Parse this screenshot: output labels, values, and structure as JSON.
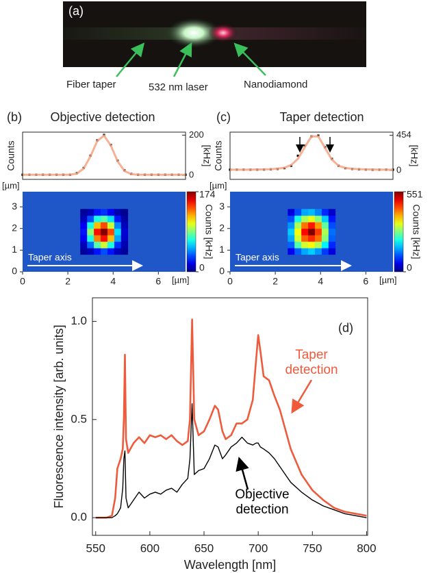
{
  "photo": {
    "label": "(a)",
    "annotations": [
      "Fiber taper",
      "532 nm laser",
      "Nanodiamond"
    ]
  },
  "chart_data": [
    {
      "type": "line",
      "panel_label": "(b)",
      "title": "Objective detection",
      "ylabel": "Counts",
      "unit_label": "[kHz]",
      "xlim": [
        0,
        7.2
      ],
      "ylim": [
        -20,
        215
      ],
      "yticks": [
        0,
        200
      ],
      "x": [
        0,
        0.3,
        0.6,
        0.9,
        1.2,
        1.5,
        1.8,
        2.1,
        2.4,
        2.7,
        3.0,
        3.3,
        3.6,
        3.9,
        4.2,
        4.5,
        4.8,
        5.1,
        5.4,
        5.7,
        6.0,
        6.3,
        6.6,
        6.9,
        7.2
      ],
      "series": [
        {
          "style": "markers",
          "color": "#000000",
          "values": [
            3,
            3,
            3,
            3,
            3,
            3,
            3,
            3,
            11,
            37,
            98,
            174,
            201,
            151,
            73,
            25,
            7,
            3,
            3,
            3,
            3,
            3,
            3,
            3,
            3
          ]
        },
        {
          "style": "line",
          "color": "#f7a282",
          "values": [
            3,
            3,
            3,
            3,
            3,
            3,
            3,
            3,
            9,
            34,
            95,
            171,
            198,
            148,
            70,
            22,
            6,
            3,
            3,
            3,
            3,
            3,
            3,
            3,
            3
          ]
        }
      ]
    },
    {
      "type": "heatmap",
      "xlabel": "[µm]",
      "ylabel": "[µm]",
      "xlim": [
        0,
        7.2
      ],
      "ylim": [
        0,
        3.7
      ],
      "xticks": [
        0,
        2,
        4,
        6
      ],
      "yticks": [
        0,
        1,
        2,
        3
      ],
      "colormap": "jet",
      "background_color": "#1f56c8",
      "zlim": [
        0,
        174
      ],
      "zticks": [
        0,
        174
      ],
      "colorbar_label": "Counts [kHz]",
      "annotation": "Taper axis",
      "x": [
        2.7,
        3.0,
        3.3,
        3.6,
        3.9,
        4.2,
        4.5
      ],
      "y": [
        0.95,
        1.25,
        1.55,
        1.85,
        2.15,
        2.45,
        2.75
      ],
      "z": [
        [
          5,
          10,
          25,
          35,
          25,
          10,
          5
        ],
        [
          10,
          40,
          80,
          100,
          70,
          30,
          8
        ],
        [
          20,
          70,
          130,
          150,
          120,
          50,
          12
        ],
        [
          25,
          90,
          150,
          174,
          140,
          60,
          15
        ],
        [
          20,
          70,
          120,
          140,
          100,
          45,
          10
        ],
        [
          10,
          35,
          70,
          80,
          60,
          25,
          6
        ],
        [
          4,
          10,
          25,
          30,
          20,
          8,
          3
        ]
      ]
    },
    {
      "type": "line",
      "panel_label": "(c)",
      "title": "Taper detection",
      "ylabel": "Counts",
      "unit_label": "[kHz]",
      "xlim": [
        0,
        7.2
      ],
      "ylim": [
        -115,
        495
      ],
      "yticks": [
        0,
        454
      ],
      "x": [
        0,
        0.3,
        0.6,
        0.9,
        1.2,
        1.5,
        1.8,
        2.1,
        2.4,
        2.7,
        3.0,
        3.3,
        3.6,
        3.9,
        4.2,
        4.5,
        4.8,
        5.1,
        5.4,
        5.7,
        6.0,
        6.3,
        6.6,
        6.9,
        7.2
      ],
      "series": [
        {
          "style": "markers",
          "color": "#000000",
          "values": [
            10,
            10,
            10,
            10,
            11,
            12,
            15,
            20,
            30,
            60,
            190,
            320,
            440,
            450,
            300,
            150,
            60,
            30,
            20,
            15,
            12,
            10,
            10,
            10,
            10
          ]
        },
        {
          "style": "line",
          "color": "#f7a282",
          "values": [
            10,
            10,
            10,
            11,
            12,
            14,
            17,
            23,
            35,
            70,
            150,
            300,
            440,
            440,
            290,
            140,
            60,
            32,
            22,
            17,
            14,
            12,
            11,
            10,
            10
          ]
        }
      ]
    },
    {
      "type": "heatmap",
      "xlabel": "[µm]",
      "ylabel": "[µm]",
      "xlim": [
        0,
        7.2
      ],
      "ylim": [
        0,
        3.7
      ],
      "xticks": [
        0,
        2,
        4,
        6
      ],
      "yticks": [
        0,
        1,
        2,
        3
      ],
      "colormap": "jet",
      "background_color": "#1f56c8",
      "zlim": [
        0,
        551
      ],
      "zticks": [
        0,
        551
      ],
      "colorbar_label": "Counts [kHz]",
      "annotation": "Taper axis",
      "x": [
        2.7,
        3.0,
        3.3,
        3.6,
        3.9,
        4.2,
        4.5
      ],
      "y": [
        0.95,
        1.25,
        1.55,
        1.85,
        2.15,
        2.45,
        2.75
      ],
      "z": [
        [
          60,
          120,
          160,
          180,
          150,
          100,
          50
        ],
        [
          120,
          250,
          320,
          340,
          300,
          200,
          90
        ],
        [
          160,
          320,
          430,
          460,
          420,
          280,
          120
        ],
        [
          180,
          340,
          480,
          551,
          450,
          300,
          130
        ],
        [
          150,
          300,
          420,
          470,
          400,
          260,
          110
        ],
        [
          110,
          220,
          300,
          330,
          280,
          180,
          80
        ],
        [
          50,
          110,
          160,
          170,
          140,
          90,
          40
        ]
      ]
    },
    {
      "type": "line",
      "panel_label": "(d)",
      "xlabel": "Wavelength [nm]",
      "ylabel": "Fluorescence intensity [arb. units]",
      "xlim": [
        547,
        801
      ],
      "ylim": [
        -0.09,
        1.12
      ],
      "xticks": [
        550,
        600,
        650,
        700,
        750,
        800
      ],
      "yticks": [
        {
          "value": 0,
          "label": "0.0"
        },
        {
          "value": 0.5,
          "label": "0.5"
        },
        {
          "value": 1,
          "label": "1.0"
        }
      ],
      "x": [
        550,
        560,
        565,
        568,
        570,
        573,
        575,
        576,
        577,
        578,
        580,
        585,
        590,
        595,
        600,
        605,
        610,
        615,
        620,
        625,
        630,
        635,
        637,
        639,
        641,
        645,
        650,
        655,
        660,
        663,
        667,
        670,
        675,
        680,
        685,
        690,
        695,
        698,
        700,
        702,
        705,
        710,
        715,
        720,
        725,
        730,
        740,
        750,
        760,
        770,
        780,
        790,
        800
      ],
      "series": [
        {
          "name": "Taper detection",
          "style": "line",
          "color": "#f05a3c",
          "values": [
            0,
            0,
            0.01,
            0.1,
            0.25,
            0.3,
            0.35,
            0.5,
            0.83,
            0.4,
            0.33,
            0.38,
            0.41,
            0.38,
            0.42,
            0.41,
            0.42,
            0.4,
            0.42,
            0.39,
            0.37,
            0.39,
            0.5,
            1.01,
            0.5,
            0.42,
            0.44,
            0.5,
            0.57,
            0.55,
            0.44,
            0.4,
            0.42,
            0.48,
            0.48,
            0.5,
            0.6,
            0.8,
            0.93,
            0.85,
            0.72,
            0.7,
            0.62,
            0.55,
            0.45,
            0.35,
            0.22,
            0.14,
            0.09,
            0.05,
            0.03,
            0.02,
            0.01
          ]
        },
        {
          "name": "Objective detection",
          "style": "line",
          "color": "#000000",
          "values": [
            0,
            0,
            0,
            0.01,
            0.02,
            0.05,
            0.15,
            0.3,
            0.34,
            0.1,
            0.05,
            0.09,
            0.13,
            0.1,
            0.12,
            0.13,
            0.12,
            0.14,
            0.15,
            0.13,
            0.17,
            0.2,
            0.3,
            0.58,
            0.22,
            0.24,
            0.25,
            0.3,
            0.37,
            0.36,
            0.3,
            0.32,
            0.36,
            0.38,
            0.41,
            0.38,
            0.37,
            0.38,
            0.38,
            0.36,
            0.35,
            0.33,
            0.3,
            0.26,
            0.22,
            0.18,
            0.13,
            0.09,
            0.06,
            0.04,
            0.02,
            0.01,
            0
          ]
        }
      ]
    }
  ]
}
